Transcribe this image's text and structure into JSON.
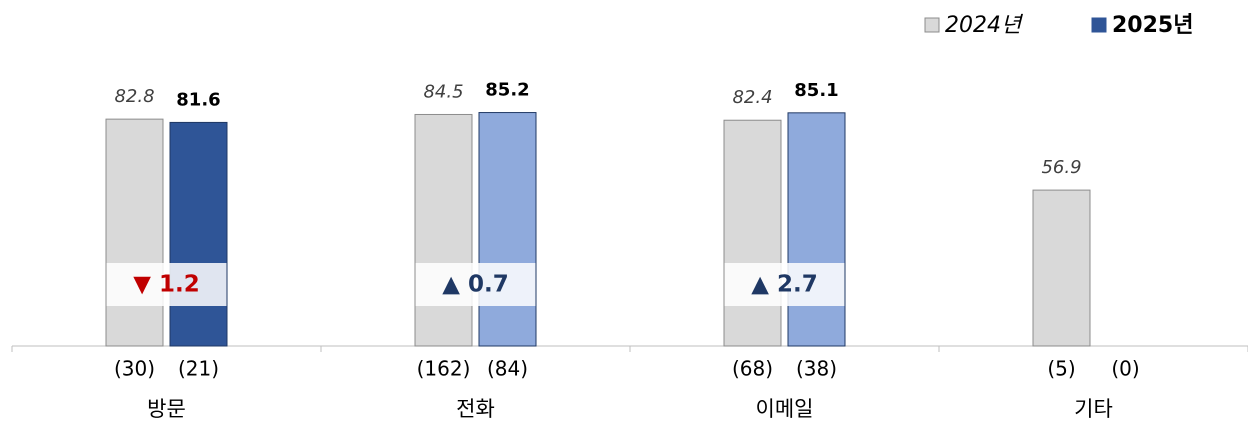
{
  "chart_data": {
    "type": "bar",
    "categories": [
      "방문",
      "전화",
      "이메일",
      "기타"
    ],
    "series": [
      {
        "name": "2024년",
        "color": "#d9d9d9",
        "values": [
          82.8,
          84.5,
          82.4,
          56.9
        ],
        "count_labels": [
          "(30)",
          "(162)",
          "(68)",
          "(5)"
        ]
      },
      {
        "name": "2025년",
        "color": "#2f5597",
        "colors": [
          "#2f5597",
          "#8faadc",
          "#8faadc",
          "#8faadc"
        ],
        "values": [
          81.6,
          85.2,
          85.1,
          null
        ],
        "count_labels": [
          "(21)",
          "(84)",
          "(38)",
          "(0)"
        ]
      }
    ],
    "change_labels": [
      "▼ 1.2",
      "▲ 0.7",
      "▲ 2.7",
      null
    ],
    "change_colors": [
      "#c00000",
      "#1f3864",
      "#1f3864",
      null
    ],
    "ylim": [
      0,
      100
    ],
    "legend": "top-right"
  }
}
